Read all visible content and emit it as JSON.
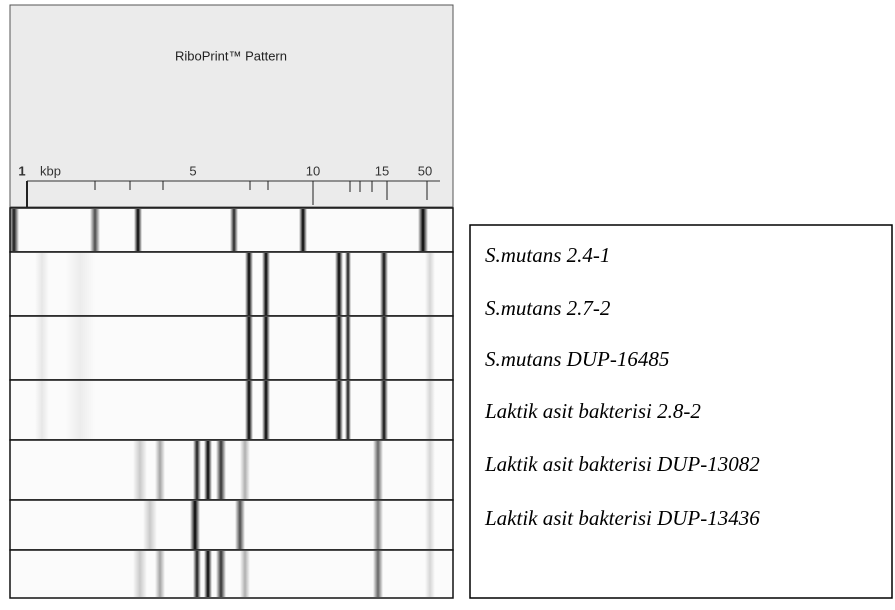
{
  "header": {
    "title": "RiboPrint™ Pattern"
  },
  "scale": {
    "labels": [
      "1",
      "kbp",
      "5",
      "10",
      "15",
      "50"
    ]
  },
  "legend": {
    "items": [
      "S.mutans 2.4-1",
      "S.mutans 2.7-2",
      "S.mutans DUP-16485",
      "Laktik asit bakterisi 2.8-2",
      "Laktik asit bakterisi DUP-13082",
      "Laktik asit bakterisi DUP-13436"
    ]
  }
}
